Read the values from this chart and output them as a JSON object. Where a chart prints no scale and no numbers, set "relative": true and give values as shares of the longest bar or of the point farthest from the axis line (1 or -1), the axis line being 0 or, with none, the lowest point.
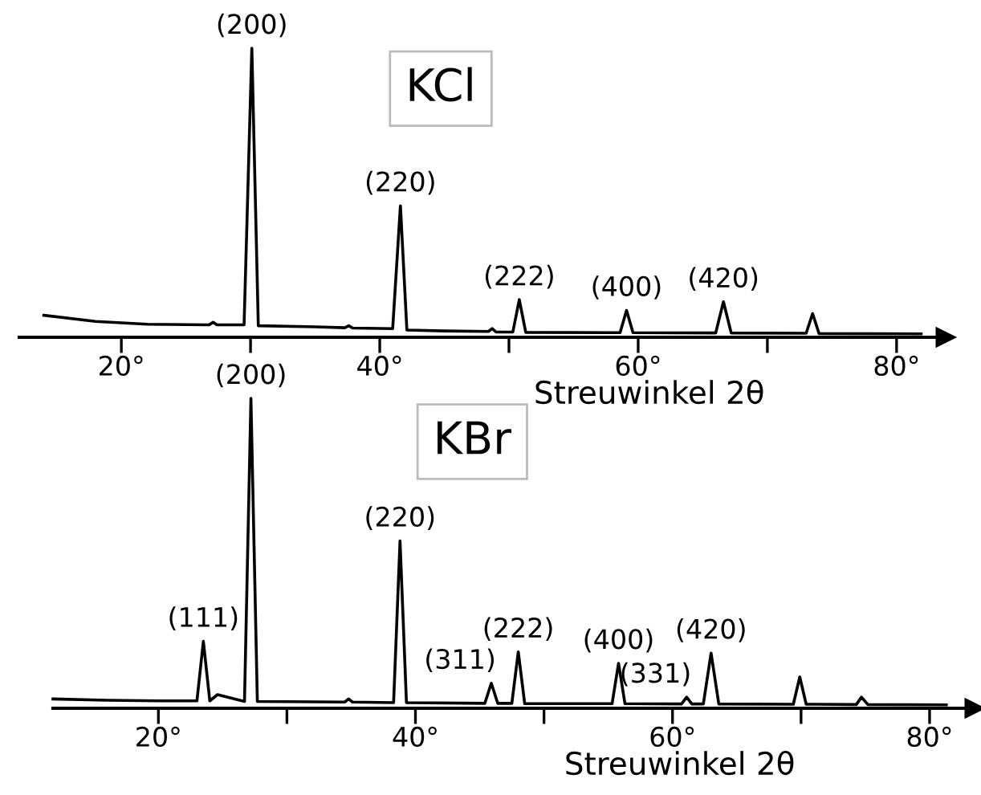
{
  "chart_data": [
    {
      "type": "line",
      "title": "KCl",
      "xlabel": "Streuwinkel 2θ",
      "relative": true,
      "tick_labels": "x",
      "color": "#000000",
      "xlim": [
        12.1,
        83.8
      ],
      "xticks": [
        {
          "value": 20,
          "label": "20°"
        },
        {
          "value": 30,
          "label": null
        },
        {
          "value": 40,
          "label": "40°"
        },
        {
          "value": 50,
          "label": null
        },
        {
          "value": 60,
          "label": "60°"
        },
        {
          "value": 70,
          "label": null
        },
        {
          "value": 80,
          "label": "80°"
        }
      ],
      "x": [
        14,
        18,
        22,
        26.8,
        27.1,
        27.4,
        29.5,
        30.1,
        30.6,
        35,
        37.3,
        37.6,
        37.9,
        41.0,
        41.6,
        42.1,
        45,
        48.4,
        48.7,
        49.0,
        50.3,
        50.8,
        51.3,
        58.6,
        59.1,
        59.6,
        66.0,
        66.6,
        67.2,
        73.0,
        73.5,
        74.0,
        81.9
      ],
      "values": [
        0.076,
        0.055,
        0.045,
        0.043,
        0.052,
        0.043,
        0.043,
        1,
        0.04,
        0.036,
        0.033,
        0.04,
        0.032,
        0.03,
        0.455,
        0.025,
        0.022,
        0.02,
        0.03,
        0.018,
        0.018,
        0.13,
        0.017,
        0.016,
        0.093,
        0.016,
        0.015,
        0.123,
        0.015,
        0.014,
        0.082,
        0.013,
        0.012
      ],
      "annotations": [
        {
          "text": "(200)",
          "x": 30.1,
          "y": 1
        },
        {
          "text": "(220)",
          "x": 41.6,
          "y": 0.455
        },
        {
          "text": "(222)",
          "x": 50.8,
          "y": 0.13
        },
        {
          "text": "(400)",
          "x": 59.1,
          "y": 0.093
        },
        {
          "text": "(420)",
          "x": 66.6,
          "y": 0.123
        }
      ]
    },
    {
      "type": "line",
      "title": "KBr",
      "xlabel": "Streuwinkel 2θ",
      "relative": true,
      "tick_labels": "x",
      "color": "#000000",
      "xlim": [
        11.8,
        83.5
      ],
      "xticks": [
        {
          "value": 20,
          "label": "20°"
        },
        {
          "value": 30,
          "label": null
        },
        {
          "value": 40,
          "label": "40°"
        },
        {
          "value": 50,
          "label": null
        },
        {
          "value": 60,
          "label": "60°"
        },
        {
          "value": 70,
          "label": null
        },
        {
          "value": 80,
          "label": "80°"
        }
      ],
      "x": [
        11.8,
        16,
        20,
        23.0,
        23.5,
        24.0,
        24.6,
        26.7,
        27.2,
        27.7,
        34.5,
        34.8,
        35.1,
        38.3,
        38.8,
        39.3,
        45.4,
        45.9,
        46.4,
        47.5,
        48.0,
        48.5,
        55.3,
        55.8,
        56.3,
        60.7,
        61.1,
        61.5,
        62.4,
        63.0,
        63.6,
        69.4,
        69.9,
        70.4,
        74.3,
        74.7,
        75.2,
        81.3
      ],
      "values": [
        0.03,
        0.026,
        0.024,
        0.024,
        0.216,
        0.024,
        0.044,
        0.022,
        1,
        0.022,
        0.02,
        0.03,
        0.02,
        0.018,
        0.54,
        0.018,
        0.016,
        0.081,
        0.016,
        0.016,
        0.182,
        0.015,
        0.015,
        0.145,
        0.015,
        0.014,
        0.036,
        0.014,
        0.014,
        0.178,
        0.014,
        0.013,
        0.101,
        0.013,
        0.012,
        0.036,
        0.012,
        0.011
      ],
      "annotations": [
        {
          "text": "(111)",
          "x": 23.5,
          "y": 0.216
        },
        {
          "text": "(200)",
          "x": 27.2,
          "y": 1
        },
        {
          "text": "(220)",
          "x": 38.8,
          "y": 0.54
        },
        {
          "text": "(311)",
          "x": 45.9,
          "y": 0.081
        },
        {
          "text": "(222)",
          "x": 48.0,
          "y": 0.182
        },
        {
          "text": "(400)",
          "x": 55.8,
          "y": 0.145
        },
        {
          "text": "(331)",
          "x": 61.1,
          "y": 0.036
        },
        {
          "text": "(420)",
          "x": 63.0,
          "y": 0.178
        }
      ]
    }
  ]
}
